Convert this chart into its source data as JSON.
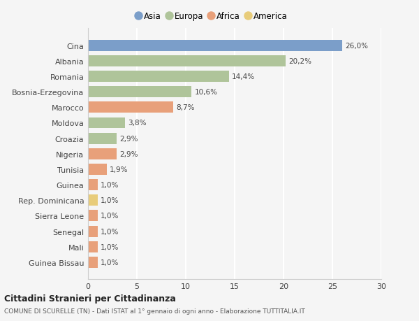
{
  "countries": [
    "Cina",
    "Albania",
    "Romania",
    "Bosnia-Erzegovina",
    "Marocco",
    "Moldova",
    "Croazia",
    "Nigeria",
    "Tunisia",
    "Guinea",
    "Rep. Dominicana",
    "Sierra Leone",
    "Senegal",
    "Mali",
    "Guinea Bissau"
  ],
  "values": [
    26.0,
    20.2,
    14.4,
    10.6,
    8.7,
    3.8,
    2.9,
    2.9,
    1.9,
    1.0,
    1.0,
    1.0,
    1.0,
    1.0,
    1.0
  ],
  "labels": [
    "26,0%",
    "20,2%",
    "14,4%",
    "10,6%",
    "8,7%",
    "3,8%",
    "2,9%",
    "2,9%",
    "1,9%",
    "1,0%",
    "1,0%",
    "1,0%",
    "1,0%",
    "1,0%",
    "1,0%"
  ],
  "continents": [
    "Asia",
    "Europa",
    "Europa",
    "Europa",
    "Africa",
    "Europa",
    "Europa",
    "Africa",
    "Africa",
    "Africa",
    "America",
    "Africa",
    "Africa",
    "Africa",
    "Africa"
  ],
  "continent_colors": {
    "Asia": "#7b9ec9",
    "Europa": "#afc49a",
    "Africa": "#e8a07a",
    "America": "#e8cc7a"
  },
  "legend_order": [
    "Asia",
    "Europa",
    "Africa",
    "America"
  ],
  "title": "Cittadini Stranieri per Cittadinanza",
  "subtitle": "COMUNE DI SCURELLE (TN) - Dati ISTAT al 1° gennaio di ogni anno - Elaborazione TUTTITALIA.IT",
  "xlim": [
    0,
    30
  ],
  "xticks": [
    0,
    5,
    10,
    15,
    20,
    25,
    30
  ],
  "bg_color": "#f5f5f5",
  "grid_color": "#ffffff",
  "bar_height": 0.72
}
